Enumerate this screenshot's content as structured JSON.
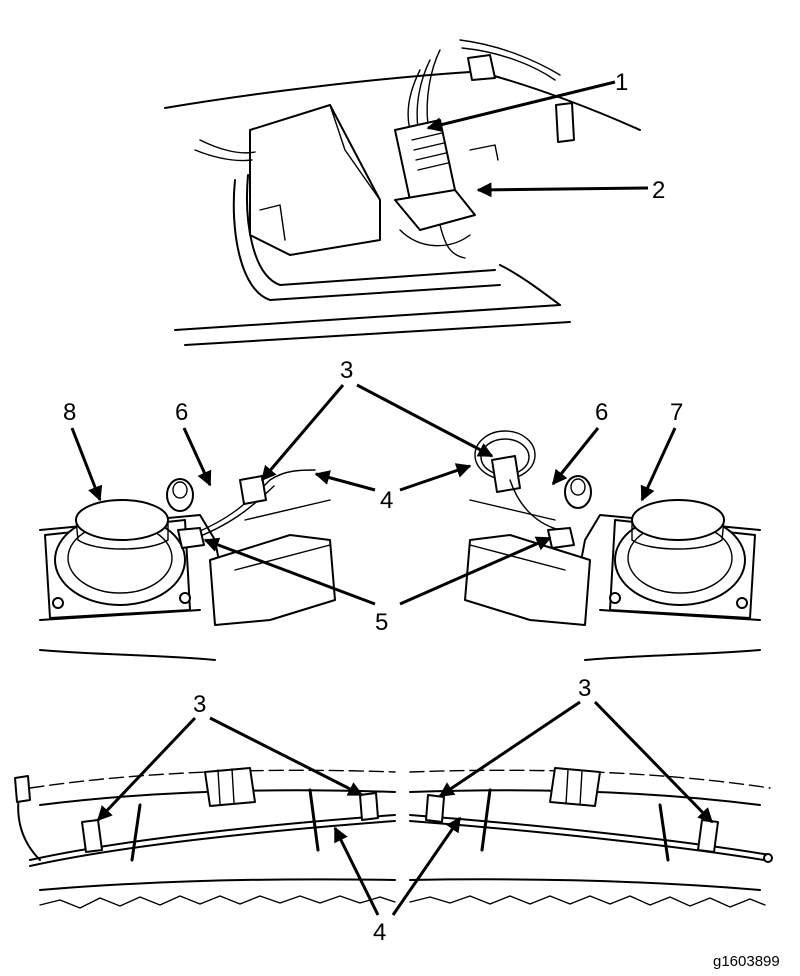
{
  "callouts": {
    "c1": "1",
    "c2": "2",
    "c3_middle": "3",
    "c4_middle": "4",
    "c5": "5",
    "c6_left": "6",
    "c6_right": "6",
    "c7": "7",
    "c8": "8",
    "c3_bottom_left": "3",
    "c3_bottom_right": "3",
    "c4_bottom": "4"
  },
  "figure_id": "g1603899"
}
